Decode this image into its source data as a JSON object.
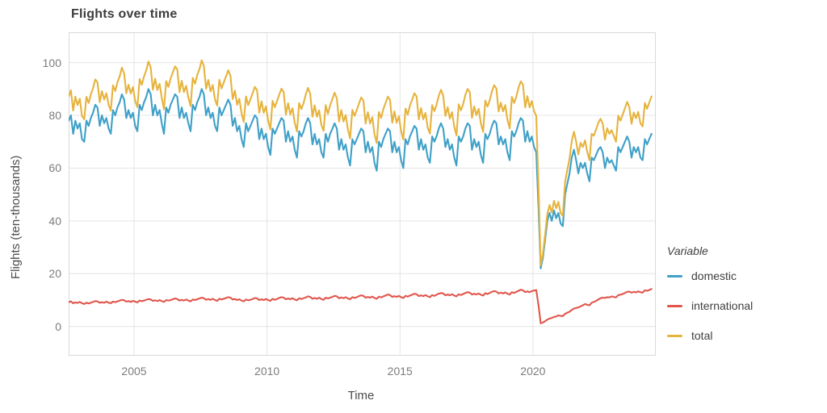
{
  "title": "Flights over time",
  "x_axis": {
    "title": "Time",
    "tick_labels": [
      "2005",
      "2010",
      "2015",
      "2020"
    ]
  },
  "y_axis": {
    "title": "Flights (ten-thousands)",
    "tick_labels": [
      "0",
      "20",
      "40",
      "60",
      "80",
      "100"
    ]
  },
  "legend": {
    "title": "Variable",
    "items": [
      {
        "label": "domestic",
        "color": "#3fa0c8"
      },
      {
        "label": "international",
        "color": "#e1564c"
      },
      {
        "label": "total",
        "color": "#e6b33d"
      }
    ]
  },
  "colors": {
    "grid": "#e4e4e4",
    "frame": "#d9d9d9",
    "text": "#4c4c4c",
    "ticks": "#7c7c7c"
  },
  "chart_data": {
    "type": "line",
    "title": "Flights over time",
    "xlabel": "Time",
    "ylabel": "Flights (ten-thousands)",
    "frequency": "monthly",
    "x_unit": "decimal_year",
    "x_start": 2002.542,
    "x_domain": [
      2002.54,
      2024.62
    ],
    "y_domain": [
      -11.1,
      111.5
    ],
    "x_ticks": [
      2005,
      2010,
      2015,
      2020
    ],
    "y_ticks": [
      0,
      20,
      40,
      60,
      80,
      100
    ],
    "grid": true,
    "legend_position": "right",
    "series": [
      {
        "name": "domestic",
        "color": "#3fa0c8",
        "values": [
          78,
          80,
          73,
          78,
          75,
          77,
          71,
          70,
          78,
          76,
          79,
          81,
          84,
          83,
          76,
          80,
          77,
          79,
          75,
          73,
          82,
          80,
          83,
          85,
          88,
          86,
          79,
          82,
          79,
          81,
          76,
          74,
          84,
          82,
          85,
          87,
          90,
          88,
          80,
          84,
          80,
          82,
          77,
          73,
          83,
          81,
          84,
          86,
          88,
          87,
          79,
          83,
          79,
          81,
          77,
          74,
          84,
          82,
          85,
          87,
          90,
          88,
          80,
          83,
          79,
          81,
          76,
          74,
          83,
          80,
          82,
          84,
          86,
          84,
          76,
          79,
          74,
          76,
          71,
          68,
          77,
          74,
          76,
          78,
          80,
          79,
          71,
          75,
          71,
          73,
          68,
          65,
          75,
          73,
          75,
          77,
          79,
          78,
          70,
          74,
          70,
          72,
          67,
          64,
          74,
          72,
          74,
          77,
          79,
          77,
          69,
          73,
          69,
          71,
          66,
          64,
          73,
          70,
          73,
          75,
          77,
          75,
          67,
          71,
          67,
          69,
          64,
          61,
          71,
          69,
          71,
          73,
          75,
          74,
          66,
          70,
          66,
          68,
          62,
          59,
          70,
          68,
          71,
          73,
          75,
          74,
          66,
          70,
          66,
          68,
          63,
          60,
          71,
          69,
          72,
          74,
          76,
          75,
          67,
          71,
          67,
          69,
          64,
          62,
          72,
          70,
          72,
          75,
          77,
          75,
          68,
          71,
          67,
          69,
          64,
          61,
          72,
          70,
          72,
          75,
          77,
          76,
          67,
          71,
          68,
          70,
          65,
          62,
          73,
          71,
          73,
          76,
          78,
          77,
          69,
          72,
          69,
          71,
          66,
          63,
          74,
          72,
          74,
          77,
          79,
          78,
          70,
          74,
          70,
          72,
          68,
          66,
          45,
          22,
          26,
          33,
          40,
          43,
          40,
          44,
          41,
          43,
          39,
          38,
          50,
          54,
          58,
          64,
          67,
          63,
          58,
          62,
          60,
          62,
          58,
          55,
          64,
          63,
          65,
          67,
          68,
          66,
          60,
          64,
          62,
          63,
          61,
          59,
          68,
          66,
          68,
          70,
          72,
          70,
          64,
          68,
          66,
          68,
          64,
          63,
          71,
          69,
          71,
          73
        ]
      },
      {
        "name": "international",
        "color": "#e1564c",
        "values": [
          9.2,
          9.5,
          8.8,
          9.1,
          8.9,
          9.3,
          8.8,
          8.5,
          9.0,
          8.7,
          9.0,
          9.3,
          9.6,
          9.5,
          9.0,
          9.2,
          9.0,
          9.4,
          9.0,
          8.8,
          9.4,
          9.2,
          9.5,
          9.8,
          10.1,
          9.9,
          9.4,
          9.6,
          9.3,
          9.7,
          9.4,
          9.1,
          9.8,
          9.6,
          9.8,
          10.1,
          10.4,
          10.2,
          9.7,
          9.9,
          9.6,
          10.0,
          9.6,
          9.3,
          10.0,
          9.8,
          10.0,
          10.3,
          10.6,
          10.4,
          9.8,
          10.1,
          9.8,
          10.2,
          9.8,
          9.5,
          10.2,
          10.0,
          10.3,
          10.6,
          10.9,
          10.7,
          10.1,
          10.4,
          10.1,
          10.5,
          10.0,
          9.7,
          10.5,
          10.2,
          10.5,
          10.8,
          11.1,
          10.9,
          10.2,
          10.4,
          10.0,
          10.3,
          9.8,
          9.5,
          10.2,
          9.9,
          10.1,
          10.4,
          10.8,
          10.6,
          10.0,
          10.3,
          10.0,
          10.4,
          10.0,
          9.7,
          10.5,
          10.1,
          10.4,
          10.8,
          11.1,
          10.9,
          10.3,
          10.6,
          10.3,
          10.7,
          10.2,
          9.9,
          10.7,
          10.4,
          10.7,
          11.0,
          11.4,
          11.2,
          10.5,
          10.8,
          10.5,
          10.9,
          10.4,
          10.1,
          10.9,
          10.6,
          10.9,
          11.2,
          11.6,
          11.4,
          10.7,
          11.0,
          10.7,
          11.1,
          10.6,
          10.3,
          11.1,
          10.8,
          11.1,
          11.5,
          11.8,
          11.6,
          10.9,
          11.2,
          10.9,
          11.3,
          10.8,
          10.5,
          11.3,
          11.0,
          11.4,
          11.7,
          12.1,
          11.9,
          11.2,
          11.5,
          11.2,
          11.6,
          11.1,
          10.8,
          11.6,
          11.3,
          11.7,
          12.0,
          12.4,
          12.2,
          11.5,
          11.8,
          11.5,
          11.9,
          11.4,
          11.1,
          11.9,
          11.6,
          12.0,
          12.4,
          12.7,
          12.5,
          11.8,
          12.1,
          11.8,
          12.2,
          11.7,
          11.4,
          12.2,
          11.9,
          12.3,
          12.7,
          13.0,
          12.8,
          12.1,
          12.4,
          12.1,
          12.5,
          12.0,
          11.7,
          12.6,
          12.3,
          12.7,
          13.1,
          13.4,
          13.2,
          12.5,
          12.8,
          12.5,
          12.9,
          12.4,
          12.1,
          13.0,
          12.7,
          13.1,
          13.5,
          13.9,
          13.7,
          13.0,
          13.3,
          13.0,
          13.4,
          13.6,
          13.8,
          8.0,
          1.2,
          1.5,
          2.0,
          2.6,
          3.0,
          3.2,
          3.6,
          3.8,
          4.2,
          4.0,
          3.9,
          4.8,
          5.2,
          5.6,
          6.2,
          6.8,
          7.0,
          7.2,
          7.6,
          8.0,
          8.5,
          8.2,
          8.0,
          9.0,
          9.3,
          9.7,
          10.2,
          10.7,
          10.9,
          10.8,
          11.1,
          11.0,
          11.4,
          11.2,
          11.0,
          11.9,
          12.0,
          12.3,
          12.7,
          13.1,
          13.2,
          12.8,
          13.1,
          12.9,
          13.3,
          13.0,
          12.8,
          13.7,
          13.5,
          13.8,
          14.2
        ]
      },
      {
        "name": "total",
        "color": "#e6b33d",
        "values": [
          87.2,
          89.5,
          81.8,
          87.1,
          83.9,
          86.3,
          79.8,
          78.5,
          87.0,
          84.7,
          88.0,
          90.3,
          93.6,
          92.5,
          85.0,
          89.2,
          86.0,
          88.4,
          84.0,
          81.8,
          91.4,
          89.2,
          92.5,
          94.8,
          98.1,
          95.9,
          88.4,
          91.6,
          88.3,
          90.7,
          85.4,
          83.1,
          93.8,
          91.6,
          94.8,
          97.1,
          100.4,
          98.2,
          89.7,
          93.9,
          89.6,
          92.0,
          86.6,
          82.3,
          93.0,
          90.8,
          94.0,
          96.3,
          98.6,
          97.4,
          88.8,
          93.1,
          88.8,
          91.2,
          86.8,
          83.5,
          94.2,
          92.0,
          95.3,
          97.6,
          100.9,
          98.7,
          90.1,
          93.4,
          89.1,
          91.5,
          86.0,
          83.7,
          93.5,
          90.2,
          92.5,
          94.8,
          97.1,
          94.9,
          86.2,
          89.4,
          84.0,
          86.3,
          80.8,
          77.5,
          87.2,
          83.9,
          86.1,
          88.4,
          90.8,
          89.6,
          81.0,
          85.3,
          81.0,
          83.4,
          78.0,
          74.7,
          85.5,
          83.1,
          85.4,
          87.8,
          90.1,
          88.9,
          80.3,
          84.6,
          80.3,
          82.7,
          77.2,
          73.9,
          84.7,
          82.4,
          84.7,
          88.0,
          90.4,
          88.2,
          79.5,
          83.8,
          79.5,
          81.9,
          76.4,
          74.1,
          83.9,
          80.6,
          83.9,
          86.2,
          88.6,
          86.4,
          77.7,
          82.0,
          77.7,
          80.1,
          74.6,
          71.3,
          82.1,
          79.8,
          82.1,
          84.5,
          86.8,
          85.6,
          76.9,
          81.2,
          76.9,
          79.3,
          72.8,
          69.5,
          81.3,
          79.0,
          82.4,
          84.7,
          87.1,
          85.9,
          77.2,
          81.5,
          77.2,
          79.6,
          74.1,
          70.8,
          82.6,
          80.3,
          83.7,
          86.0,
          88.4,
          87.2,
          78.5,
          82.8,
          78.5,
          80.9,
          75.4,
          73.1,
          83.9,
          81.6,
          84.0,
          87.4,
          89.7,
          87.5,
          79.8,
          83.1,
          78.8,
          81.2,
          75.7,
          72.4,
          84.2,
          81.9,
          84.3,
          87.7,
          90.0,
          88.8,
          79.1,
          83.4,
          80.1,
          82.5,
          77.0,
          73.7,
          85.6,
          83.3,
          85.7,
          89.1,
          91.4,
          90.2,
          81.5,
          84.8,
          81.5,
          83.9,
          78.4,
          75.1,
          87.0,
          84.7,
          87.1,
          90.5,
          92.9,
          91.7,
          83.0,
          87.3,
          83.0,
          85.4,
          81.6,
          79.8,
          53.0,
          23.2,
          27.5,
          35.0,
          42.6,
          46.0,
          43.2,
          47.6,
          44.8,
          47.2,
          43.0,
          41.9,
          54.8,
          59.2,
          63.6,
          70.2,
          73.8,
          70.0,
          65.2,
          69.6,
          68.0,
          70.5,
          66.2,
          63.0,
          73.0,
          72.3,
          74.7,
          77.2,
          78.7,
          76.9,
          70.8,
          75.1,
          73.0,
          74.4,
          72.2,
          70.0,
          79.9,
          78.0,
          80.3,
          82.7,
          85.1,
          83.2,
          76.8,
          81.1,
          78.9,
          81.3,
          77.0,
          75.8,
          84.7,
          82.5,
          84.8,
          87.2
        ]
      }
    ]
  }
}
